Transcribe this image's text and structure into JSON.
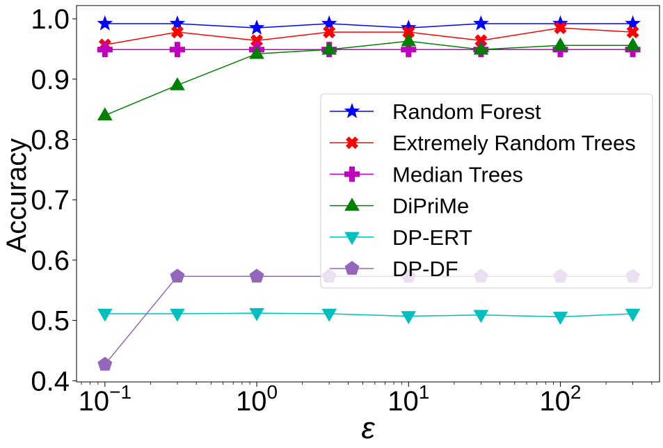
{
  "chart_data": {
    "type": "line",
    "xscale": "log",
    "xlabel": "ε",
    "ylabel": "Accuracy",
    "xlim": [
      0.065,
      450
    ],
    "ylim": [
      0.398,
      1.022
    ],
    "x": [
      0.1,
      0.3,
      1,
      3,
      10,
      30,
      100,
      300
    ],
    "x_ticks": [
      {
        "value": 0.1,
        "base": "10",
        "exp": "−1"
      },
      {
        "value": 1,
        "base": "10",
        "exp": "0"
      },
      {
        "value": 10,
        "base": "10",
        "exp": "1"
      },
      {
        "value": 100,
        "base": "10",
        "exp": "2"
      }
    ],
    "y_ticks": [
      {
        "value": 0.4,
        "label": "0.4"
      },
      {
        "value": 0.5,
        "label": "0.5"
      },
      {
        "value": 0.6,
        "label": "0.6"
      },
      {
        "value": 0.7,
        "label": "0.7"
      },
      {
        "value": 0.8,
        "label": "0.8"
      },
      {
        "value": 0.9,
        "label": "0.9"
      },
      {
        "value": 1.0,
        "label": "1.0"
      }
    ],
    "grid": false,
    "legend": "center-right",
    "series": [
      {
        "name": "Random Forest",
        "color": "#0000ff",
        "marker": "star",
        "values": [
          0.992,
          0.992,
          0.985,
          0.992,
          0.985,
          0.992,
          0.992,
          0.992
        ]
      },
      {
        "name": "Extremely Random Trees",
        "color": "#ff0000",
        "marker": "x",
        "values": [
          0.957,
          0.978,
          0.964,
          0.978,
          0.978,
          0.964,
          0.985,
          0.978
        ]
      },
      {
        "name": "Median Trees",
        "color": "#bf00bf",
        "marker": "plus",
        "values": [
          0.949,
          0.949,
          0.949,
          0.949,
          0.949,
          0.949,
          0.949,
          0.949
        ]
      },
      {
        "name": "DiPriMe",
        "color": "#008000",
        "marker": "triangle-up",
        "values": [
          0.84,
          0.89,
          0.942,
          0.949,
          0.963,
          0.949,
          0.956,
          0.956
        ]
      },
      {
        "name": "DP-ERT",
        "color": "#00bfbf",
        "marker": "triangle-down",
        "values": [
          0.511,
          0.511,
          0.512,
          0.511,
          0.507,
          0.509,
          0.506,
          0.511
        ]
      },
      {
        "name": "DP-DF",
        "color": "#9467bd",
        "marker": "pentagon",
        "values": [
          0.427,
          0.573,
          0.573,
          0.573,
          0.573,
          0.573,
          0.573,
          0.573
        ]
      }
    ]
  }
}
